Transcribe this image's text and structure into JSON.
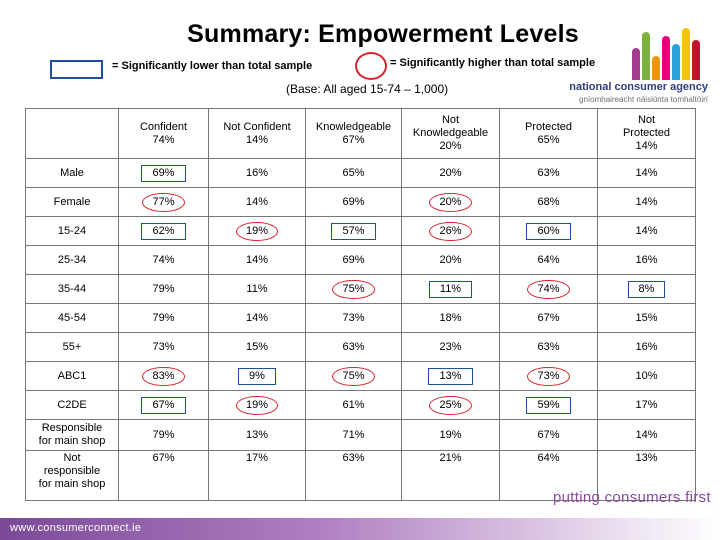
{
  "title": "Summary: Empowerment Levels",
  "legend": {
    "lower_label": "= Significantly lower than total sample",
    "higher_label": "= Significantly higher than total sample"
  },
  "base": "(Base: All aged 15-74 – 1,000)",
  "logo": {
    "name": "national consumer agency",
    "irish": "gníomhaireacht náisiúnta tomhaltóirí"
  },
  "table": {
    "columns": [
      [
        "Confident",
        "74%"
      ],
      [
        "Not Confident",
        "14%"
      ],
      [
        "Knowledgeable",
        "67%"
      ],
      [
        "Not",
        "Knowledgeable",
        "20%"
      ],
      [
        "Protected",
        "65%"
      ],
      [
        "Not",
        "Protected",
        "14%"
      ]
    ],
    "rows": [
      {
        "label": [
          "Male"
        ],
        "values": [
          "69%",
          "16%",
          "65%",
          "20%",
          "63%",
          "14%"
        ]
      },
      {
        "label": [
          "Female"
        ],
        "values": [
          "77%",
          "14%",
          "69%",
          "20%",
          "68%",
          "14%"
        ]
      },
      {
        "label": [
          "15-24"
        ],
        "values": [
          "62%",
          "19%",
          "57%",
          "26%",
          "60%",
          "14%"
        ]
      },
      {
        "label": [
          "25-34"
        ],
        "values": [
          "74%",
          "14%",
          "69%",
          "20%",
          "64%",
          "16%"
        ]
      },
      {
        "label": [
          "35-44"
        ],
        "values": [
          "79%",
          "11%",
          "75%",
          "11%",
          "74%",
          "8%"
        ]
      },
      {
        "label": [
          "45-54"
        ],
        "values": [
          "79%",
          "14%",
          "73%",
          "18%",
          "67%",
          "15%"
        ]
      },
      {
        "label": [
          "55+"
        ],
        "values": [
          "73%",
          "15%",
          "63%",
          "23%",
          "63%",
          "16%"
        ]
      },
      {
        "label": [
          "ABC1"
        ],
        "values": [
          "83%",
          "9%",
          "75%",
          "13%",
          "73%",
          "10%"
        ]
      },
      {
        "label": [
          "C2DE"
        ],
        "values": [
          "67%",
          "19%",
          "61%",
          "25%",
          "59%",
          "17%"
        ]
      },
      {
        "label": [
          "Responsible",
          "for main shop"
        ],
        "values": [
          "79%",
          "13%",
          "71%",
          "19%",
          "67%",
          "14%"
        ]
      },
      {
        "label": [
          "Not",
          "responsible",
          "for main shop"
        ],
        "values": [
          "67%",
          "17%",
          "63%",
          "21%",
          "64%",
          "13%"
        ]
      }
    ]
  },
  "slogan": "putting consumers first",
  "footer_url": "www.consumerconnect.ie",
  "colors": {
    "lower_mark": "#1f4fa0",
    "higher_mark": "#d8232a",
    "footer": "#7a4a98",
    "slogan": "#8a4aa0"
  }
}
